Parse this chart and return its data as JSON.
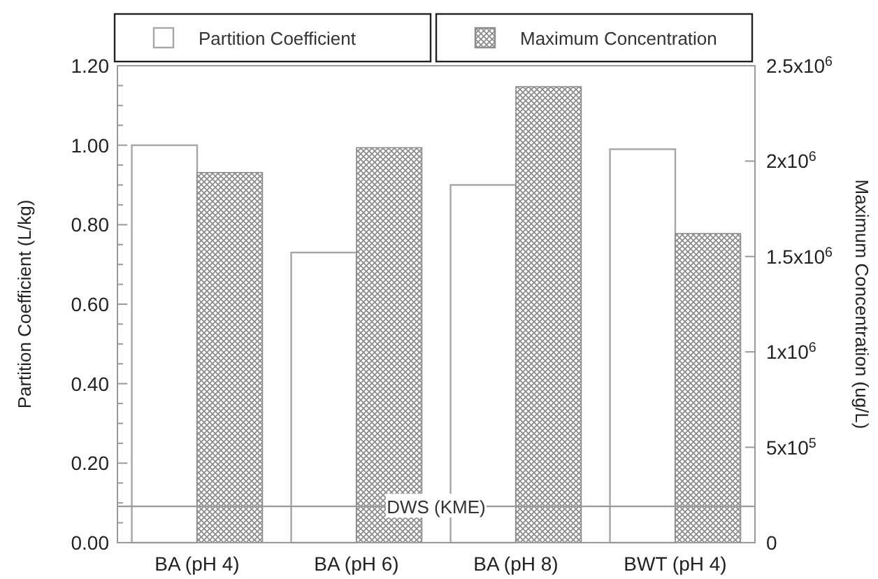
{
  "chart_data": {
    "type": "bar",
    "ylabel": "Partition Coefficient (L/kg)",
    "y2label": "Maximum Concentration (ug/L)",
    "categories": [
      "BA (pH 4)",
      "BA (pH 6)",
      "BA (pH 8)",
      "BWT (pH 4)"
    ],
    "series": [
      {
        "name": "Partition Coefficient",
        "color": "#a6a6a6",
        "values": [
          1.0,
          0.73,
          0.9,
          0.99
        ]
      },
      {
        "name": "Maximum Concentration",
        "color": "#8c8c8c",
        "axis": "y2",
        "values": [
          1940000,
          2070000,
          2390000,
          1620000
        ]
      }
    ],
    "ylim": [
      0,
      1.2
    ],
    "yticks": [
      {
        "value": 0,
        "label": "0.00"
      },
      {
        "value": 0.05,
        "label": null
      },
      {
        "value": 0.1,
        "label": null
      },
      {
        "value": 0.15,
        "label": null
      },
      {
        "value": 0.2,
        "label": "0.20"
      },
      {
        "value": 0.25,
        "label": null
      },
      {
        "value": 0.3,
        "label": null
      },
      {
        "value": 0.35,
        "label": null
      },
      {
        "value": 0.4,
        "label": "0.40"
      },
      {
        "value": 0.45,
        "label": null
      },
      {
        "value": 0.5,
        "label": null
      },
      {
        "value": 0.55,
        "label": null
      },
      {
        "value": 0.6,
        "label": "0.60"
      },
      {
        "value": 0.65,
        "label": null
      },
      {
        "value": 0.7,
        "label": null
      },
      {
        "value": 0.75,
        "label": null
      },
      {
        "value": 0.8,
        "label": "0.80"
      },
      {
        "value": 0.85,
        "label": null
      },
      {
        "value": 0.9,
        "label": null
      },
      {
        "value": 0.95,
        "label": null
      },
      {
        "value": 1.0,
        "label": "1.00"
      },
      {
        "value": 1.05,
        "label": null
      },
      {
        "value": 1.1,
        "label": null
      },
      {
        "value": 1.15,
        "label": null
      },
      {
        "value": 1.2,
        "label": "1.20"
      }
    ],
    "y2lim": [
      0,
      2500000
    ],
    "y2ticks": [
      0,
      {
        "value": 500000,
        "label": "5x10$^{5}$"
      },
      {
        "value": 1000000,
        "label": "1x10$^{6}$"
      },
      {
        "value": 1500000,
        "label": "1.5x10$^{6}$"
      },
      {
        "value": 2000000,
        "label": "2x10$^{6}$"
      },
      {
        "value": 2500000,
        "label": "2.5x10$^{6}$"
      }
    ],
    "ref_lines": [
      {
        "axis": "y2",
        "value": 190000,
        "label": "DWS (KME)",
        "color": "#999999"
      }
    ],
    "legend": "top",
    "grid": false
  }
}
